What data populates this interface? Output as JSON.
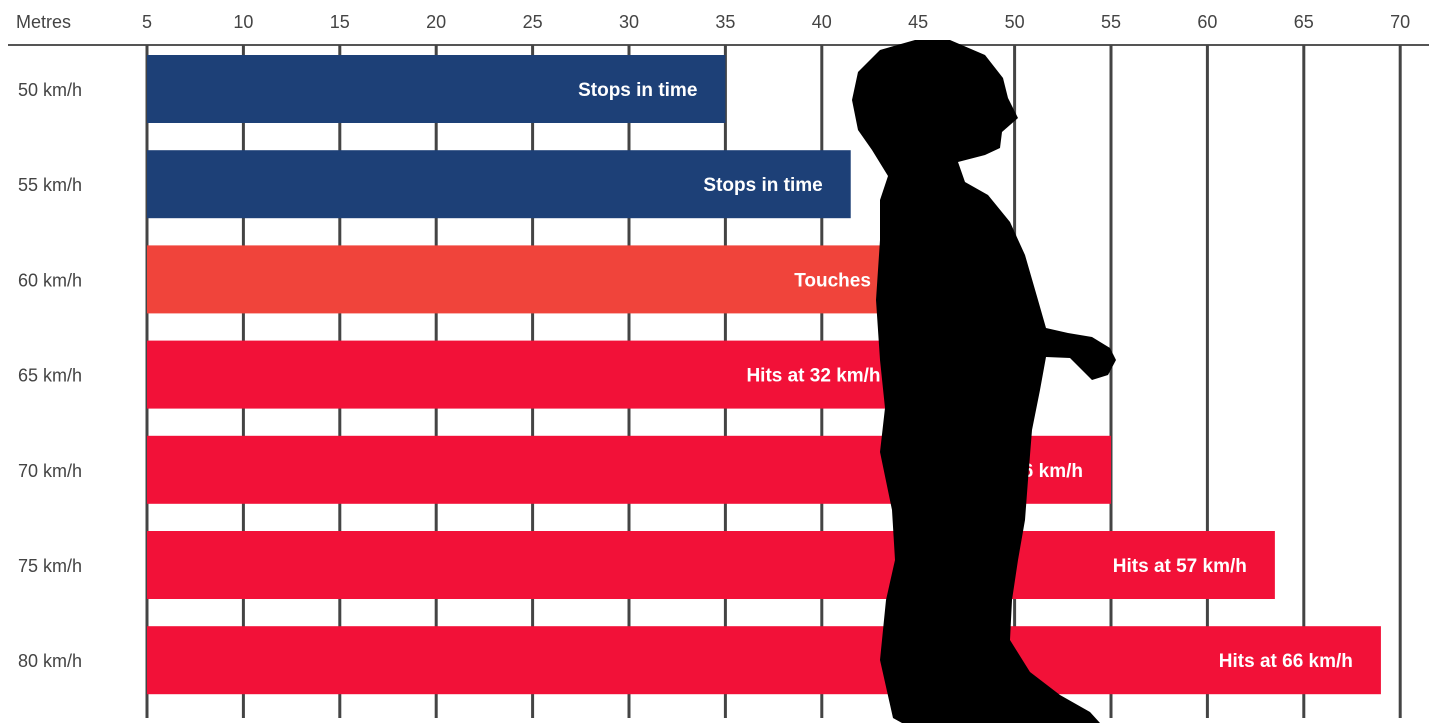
{
  "chart_data": {
    "type": "bar",
    "orientation": "horizontal",
    "x_axis_label": "Metres",
    "x_ticks": [
      5,
      10,
      15,
      20,
      25,
      30,
      35,
      40,
      45,
      50,
      55,
      60,
      65,
      70
    ],
    "xlim": [
      5,
      70
    ],
    "grid": true,
    "categories": [
      "50 km/h",
      "55 km/h",
      "60 km/h",
      "65 km/h",
      "70 km/h",
      "75 km/h",
      "80 km/h"
    ],
    "values": [
      35,
      41.5,
      44,
      44.5,
      55,
      63.5,
      69
    ],
    "bar_labels": [
      "Stops in time",
      "Stops in time",
      "Touches",
      "Hits at 32 km/h",
      "Hits at 46 km/h",
      "Hits at 57 km/h",
      "Hits at 66 km/h"
    ],
    "bar_colors": [
      "#1d4077",
      "#1d4077",
      "#f0443b",
      "#f21138",
      "#f21138",
      "#f21138",
      "#f21138"
    ],
    "silhouette": "child-silhouette"
  }
}
